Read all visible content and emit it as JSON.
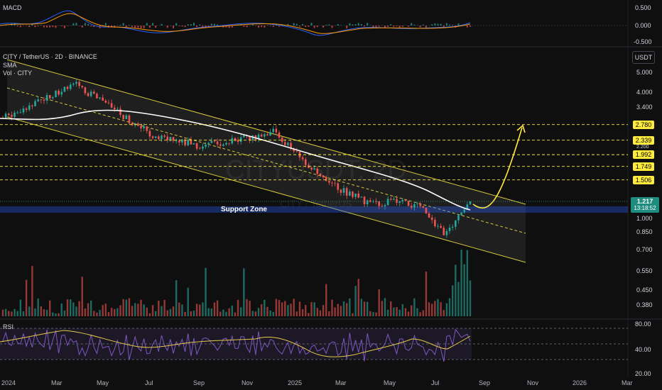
{
  "chart_data": {
    "type": "candlestick",
    "header": {
      "symbol": "CITY / TetherUS · 2D · BINANCE",
      "indicators": [
        "SMA",
        "Vol · CITY"
      ],
      "watermark": "CITYUSDT, 2D",
      "watermark_sub": "CITY / TetherUS"
    },
    "macd": {
      "title": "MACD",
      "ticks": [
        "0.500",
        "0.000",
        "-0.500"
      ]
    },
    "rsi": {
      "title": "RSI",
      "ticks": [
        "80.00",
        "40.00",
        "20.00"
      ]
    },
    "currency_button": "USDT",
    "price_axis_ticks": [
      "5.000",
      "4.000",
      "3.400",
      "2.200",
      "1.000",
      "0.850",
      "0.700",
      "0.550",
      "0.450",
      "0.380"
    ],
    "levels": [
      {
        "label": "2.780",
        "value": 2.78
      },
      {
        "label": "2.339",
        "value": 2.339
      },
      {
        "label": "1.992",
        "value": 1.992
      },
      {
        "label": "1.749",
        "value": 1.749
      },
      {
        "label": "1.506",
        "value": 1.506
      }
    ],
    "current_price": {
      "label": "1.217",
      "countdown": "13:18:52",
      "value": 1.217
    },
    "support_zone": {
      "label": "Support Zone",
      "low": 1.05,
      "high": 1.13
    },
    "x_axis_ticks": [
      "2024",
      "Mar",
      "May",
      "Jul",
      "Sep",
      "Nov",
      "2025",
      "Mar",
      "May",
      "Jul",
      "Sep",
      "Nov",
      "2026",
      "Mar"
    ],
    "approx_close_path": [
      {
        "date": "2024-01",
        "close": 3.0
      },
      {
        "date": "2024-03",
        "close": 3.9
      },
      {
        "date": "2024-04",
        "close": 4.3
      },
      {
        "date": "2024-05",
        "close": 3.6
      },
      {
        "date": "2024-07",
        "close": 2.5
      },
      {
        "date": "2024-09",
        "close": 2.2
      },
      {
        "date": "2024-11",
        "close": 2.4
      },
      {
        "date": "2024-12",
        "close": 2.6
      },
      {
        "date": "2025-02",
        "close": 1.5
      },
      {
        "date": "2025-04",
        "close": 1.15
      },
      {
        "date": "2025-05",
        "close": 1.2
      },
      {
        "date": "2025-06",
        "close": 1.1
      },
      {
        "date": "2025-07",
        "close": 0.83
      },
      {
        "date": "2025-08",
        "close": 1.217
      }
    ]
  },
  "colors": {
    "up": "#26a69a",
    "down": "#ef5350",
    "channel": "#d4c83a",
    "sma": "#ffffff",
    "projection": "#ffeb3b",
    "level": "#ffeb3b",
    "support": "#2962ff",
    "rsi": "#7e57c2"
  }
}
